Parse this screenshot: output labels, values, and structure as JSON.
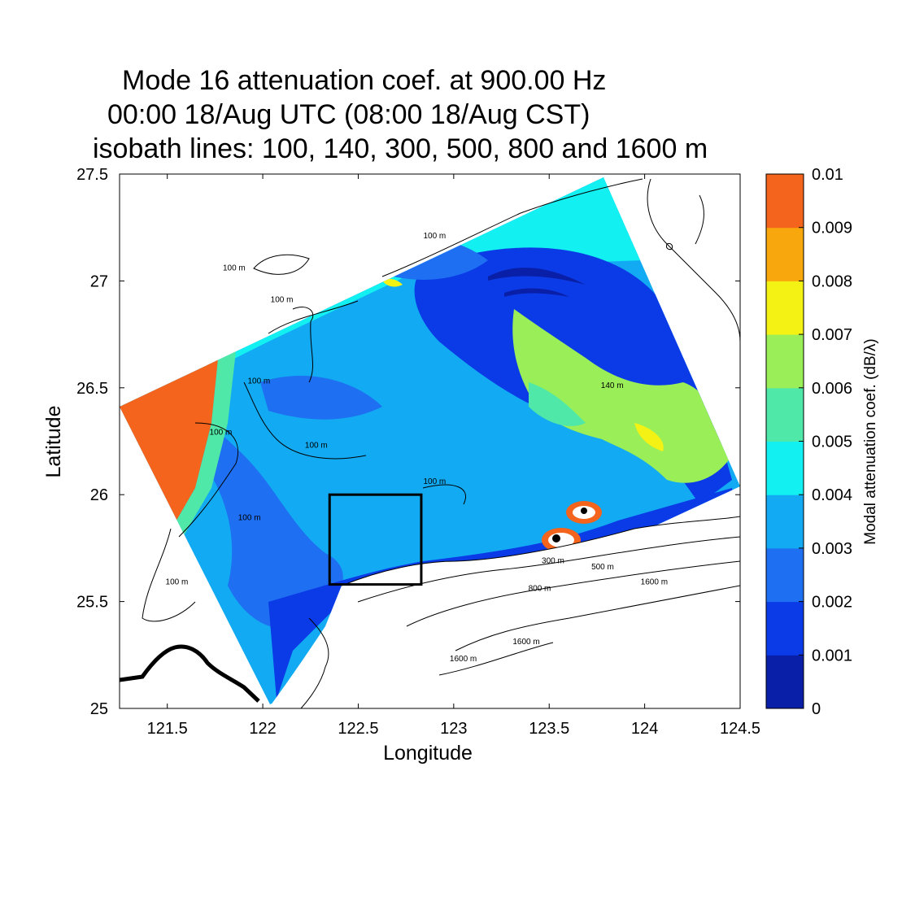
{
  "title": {
    "line1": "Mode 16 attenuation coef. at 900.00 Hz",
    "line2": "00:00 18/Aug UTC (08:00 18/Aug CST)",
    "line3": "isobath lines: 100, 140, 300, 500, 800 and 1600 m"
  },
  "axes": {
    "xlabel": "Longitude",
    "ylabel": "Latitude",
    "xlim": [
      121.25,
      124.5
    ],
    "ylim": [
      25,
      27.5
    ],
    "xticks": [
      "121.5",
      "122",
      "122.5",
      "123",
      "123.5",
      "124",
      "124.5"
    ],
    "yticks": [
      "25",
      "25.5",
      "26",
      "26.5",
      "27",
      "27.5"
    ]
  },
  "colorbar": {
    "label": "Modal attenuation coef. (dB/λ)",
    "ticks": [
      "0",
      "0.001",
      "0.002",
      "0.003",
      "0.004",
      "0.005",
      "0.006",
      "0.007",
      "0.008",
      "0.009",
      "0.01"
    ],
    "colors": [
      "#0a1fa8",
      "#0b3be6",
      "#1e6ff2",
      "#12aaf2",
      "#12f0f2",
      "#50e8a8",
      "#9aee58",
      "#f4f214",
      "#f8a80c",
      "#f4641c"
    ]
  },
  "isobath_labels": [
    {
      "text": "100 m",
      "lon": 121.85,
      "lat": 27.05
    },
    {
      "text": "100 m",
      "lon": 122.9,
      "lat": 27.2
    },
    {
      "text": "100 m",
      "lon": 122.1,
      "lat": 26.9
    },
    {
      "text": "100 m",
      "lon": 121.98,
      "lat": 26.52
    },
    {
      "text": "100 m",
      "lon": 121.78,
      "lat": 26.28
    },
    {
      "text": "100 m",
      "lon": 122.28,
      "lat": 26.22
    },
    {
      "text": "100 m",
      "lon": 121.93,
      "lat": 25.88
    },
    {
      "text": "100 m",
      "lon": 122.9,
      "lat": 26.05
    },
    {
      "text": "100 m",
      "lon": 121.55,
      "lat": 25.58
    },
    {
      "text": "140 m",
      "lon": 123.83,
      "lat": 26.5
    },
    {
      "text": "300 m",
      "lon": 123.52,
      "lat": 25.68
    },
    {
      "text": "500 m",
      "lon": 123.78,
      "lat": 25.65
    },
    {
      "text": "800 m",
      "lon": 123.45,
      "lat": 25.55
    },
    {
      "text": "1600 m",
      "lon": 124.05,
      "lat": 25.58
    },
    {
      "text": "1600 m",
      "lon": 123.38,
      "lat": 25.3
    },
    {
      "text": "1600 m",
      "lon": 123.05,
      "lat": 25.22
    }
  ],
  "study_box": {
    "lon_min": 122.35,
    "lon_max": 122.83,
    "lat_min": 25.58,
    "lat_max": 26.0
  }
}
